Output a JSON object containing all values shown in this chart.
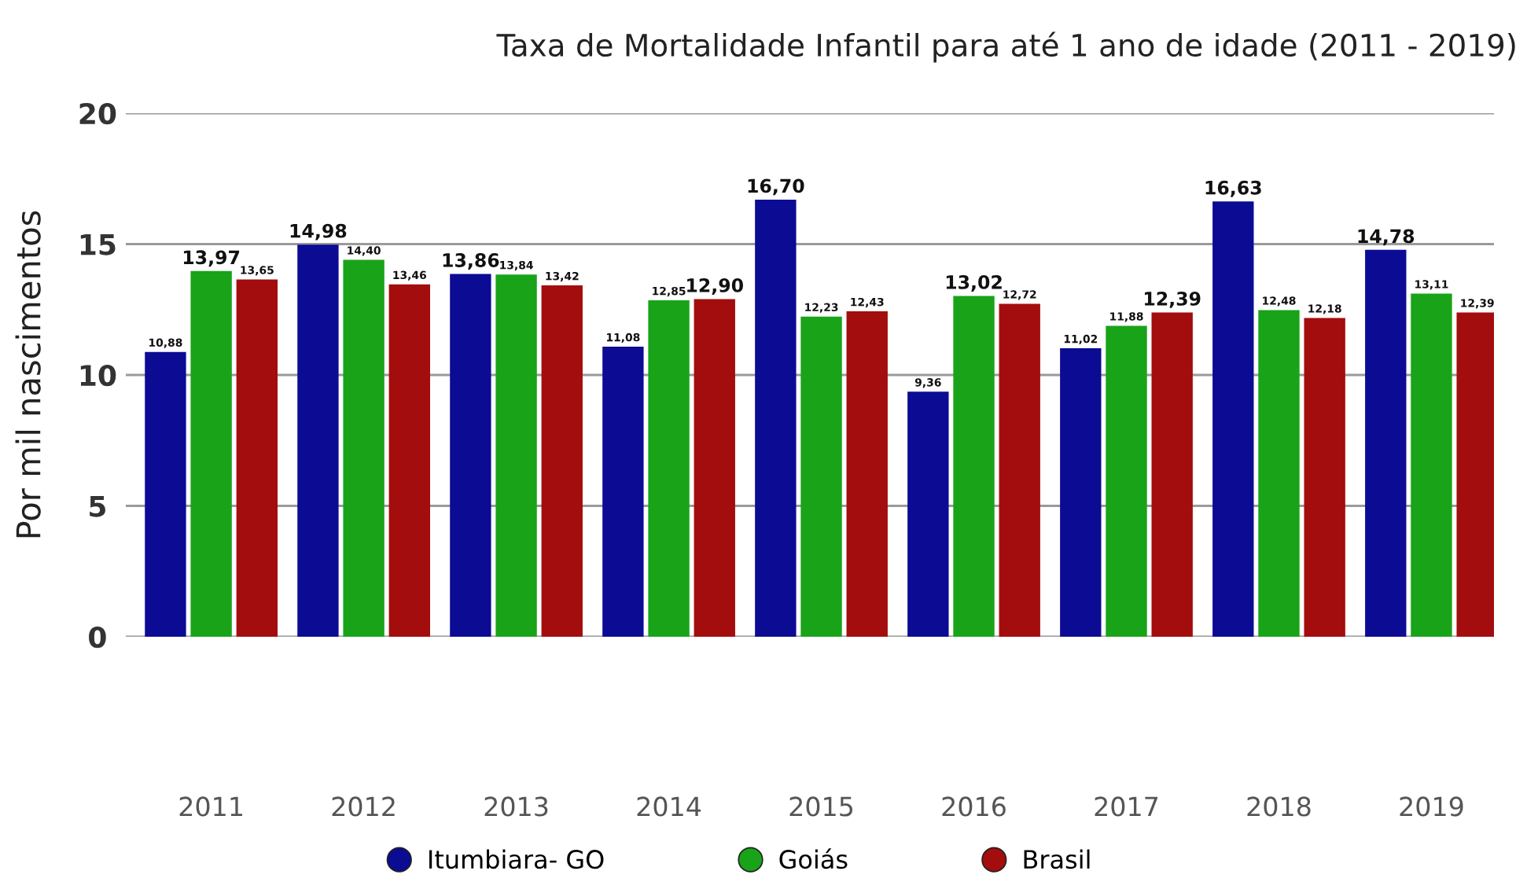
{
  "chart_data": {
    "type": "bar",
    "title": "Taxa de Mortalidade Infantil para até 1 ano de idade (2011 - 2019)",
    "ylabel": "Por mil nascimentos",
    "categories": [
      "2011",
      "2012",
      "2013",
      "2014",
      "2015",
      "2016",
      "2017",
      "2018",
      "2019"
    ],
    "series": [
      {
        "name": "Itumbiara- GO",
        "color": "#0b0b94",
        "values": [
          10.88,
          14.98,
          13.86,
          11.08,
          16.7,
          9.36,
          11.02,
          16.63,
          14.78
        ],
        "value_labels": [
          "10,88",
          "14,98",
          "13,86",
          "11,08",
          "16,70",
          "9,36",
          "11,02",
          "16,63",
          "14,78"
        ]
      },
      {
        "name": "Goiás",
        "color": "#19a319",
        "values": [
          13.97,
          14.4,
          13.84,
          12.85,
          12.23,
          13.02,
          11.88,
          12.48,
          13.11
        ],
        "value_labels": [
          "13,97",
          "14,40",
          "13,84",
          "12,85",
          "12,23",
          "13,02",
          "11,88",
          "12,48",
          "13,11"
        ]
      },
      {
        "name": "Brasil",
        "color": "#a30d0d",
        "values": [
          13.65,
          13.46,
          13.42,
          12.9,
          12.43,
          12.72,
          12.39,
          12.18,
          12.39
        ],
        "value_labels": [
          "13,65",
          "13,46",
          "13,42",
          "12,90",
          "12,43",
          "12,72",
          "12,39",
          "12,18",
          "12,39"
        ]
      }
    ],
    "ylim": [
      0,
      20
    ],
    "yticks": [
      0,
      5,
      10,
      15,
      20
    ],
    "grid": "y",
    "legend": "bottom",
    "marker": "circle"
  }
}
